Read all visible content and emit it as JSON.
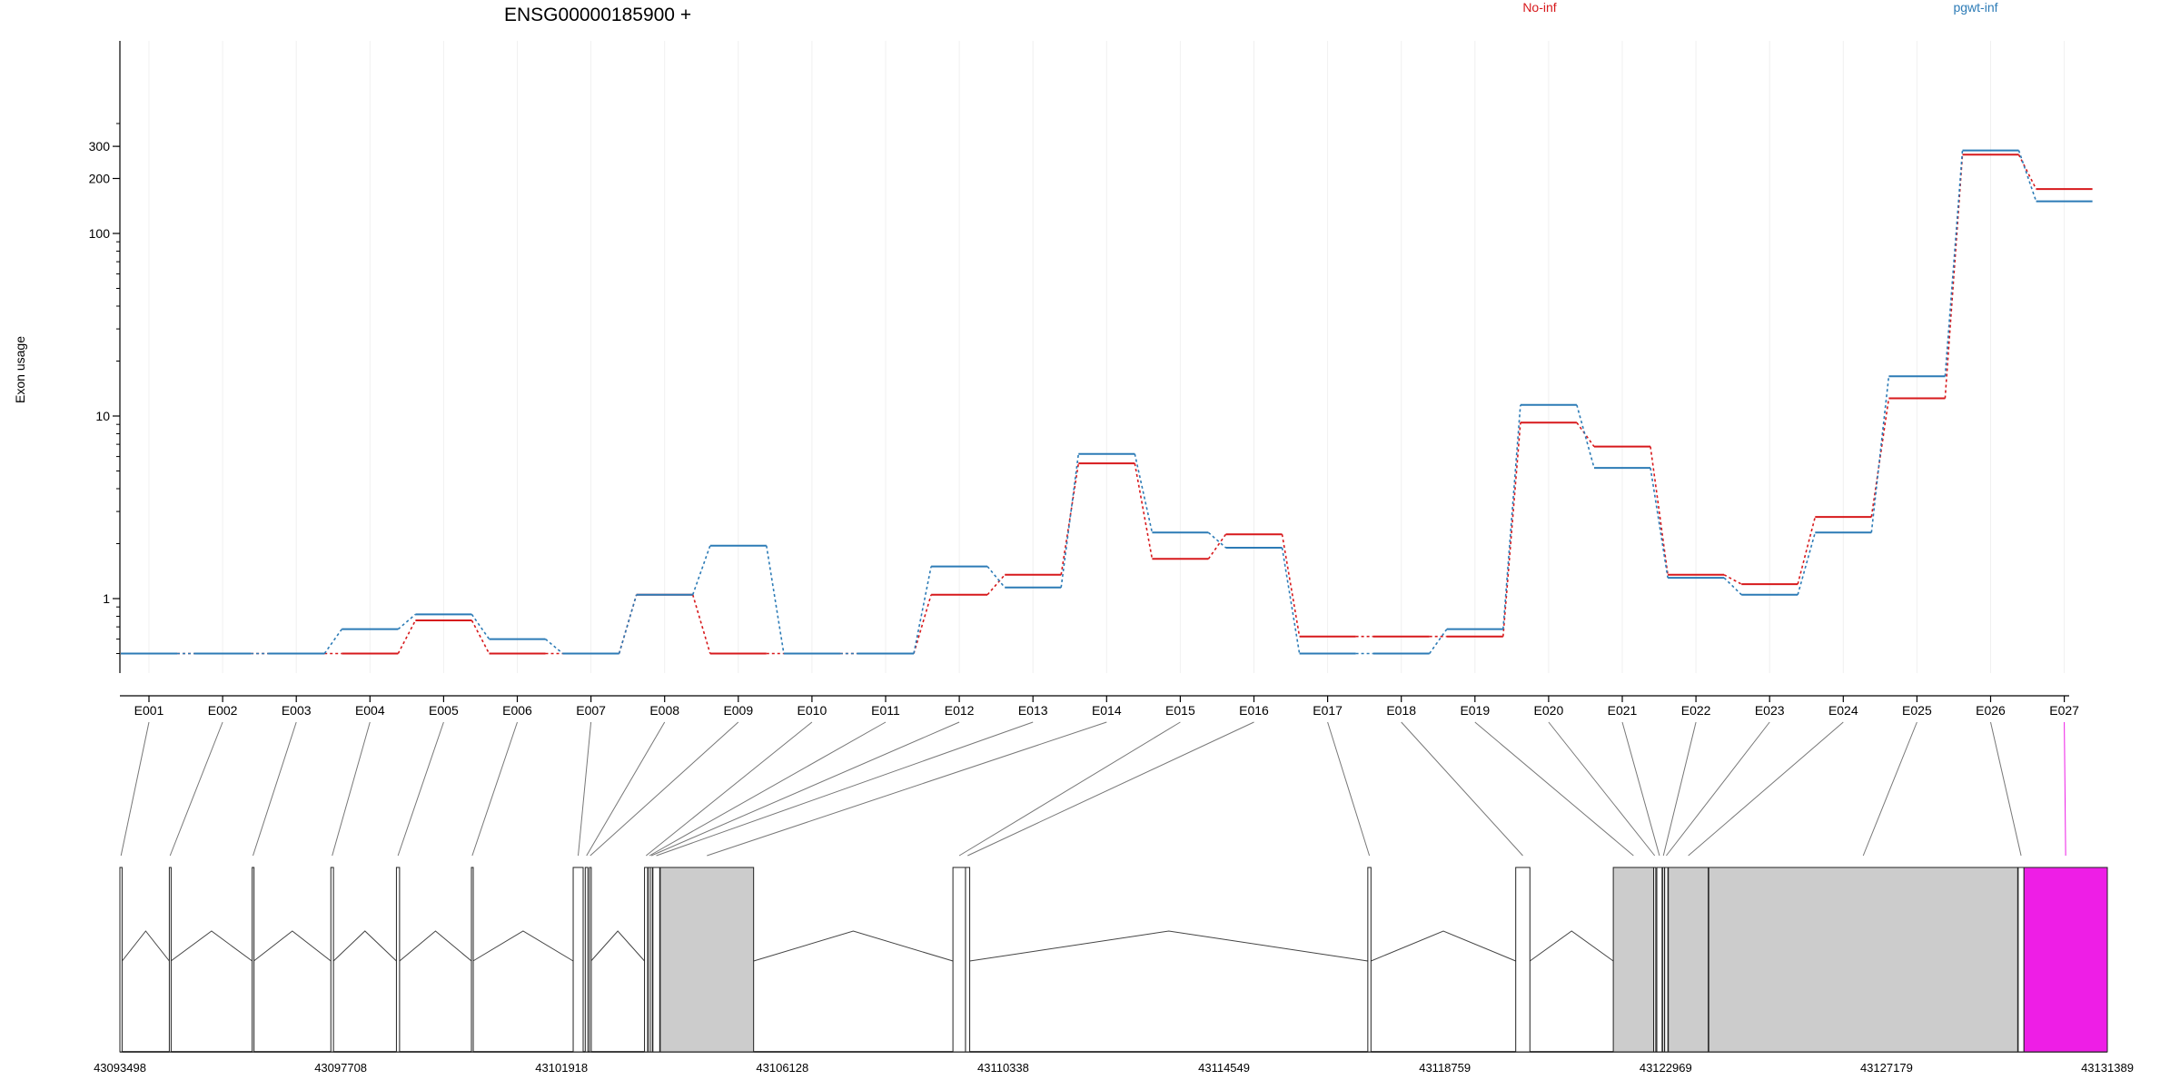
{
  "chart_data": {
    "type": "line",
    "title": "ENSG00000185900 +",
    "ylabel": "Exon usage",
    "xlabel": "",
    "y_scale": "log",
    "ylim": [
      0.5,
      400
    ],
    "y_ticks": [
      1,
      10,
      100,
      200,
      300
    ],
    "grid": "vertical",
    "legend_position": "top",
    "categories": [
      "E001",
      "E002",
      "E003",
      "E004",
      "E005",
      "E006",
      "E007",
      "E008",
      "E009",
      "E010",
      "E011",
      "E012",
      "E013",
      "E014",
      "E015",
      "E016",
      "E017",
      "E018",
      "E019",
      "E020",
      "E021",
      "E022",
      "E023",
      "E024",
      "E025",
      "E026",
      "E027"
    ],
    "series": [
      {
        "name": "No-inf",
        "color": "#d7191c",
        "values": [
          0.5,
          0.5,
          0.5,
          0.5,
          0.76,
          0.5,
          0.5,
          1.05,
          0.5,
          0.5,
          0.5,
          1.05,
          1.35,
          5.5,
          1.65,
          2.25,
          0.62,
          0.62,
          0.62,
          9.2,
          6.8,
          1.35,
          1.2,
          2.8,
          12.5,
          270,
          175
        ]
      },
      {
        "name": "pgwt-inf",
        "color": "#2c7bb6",
        "values": [
          0.5,
          0.5,
          0.5,
          0.68,
          0.82,
          0.6,
          0.5,
          1.05,
          1.95,
          0.5,
          0.5,
          1.5,
          1.15,
          6.2,
          2.3,
          1.9,
          0.5,
          0.5,
          0.68,
          11.5,
          5.2,
          1.3,
          1.05,
          2.3,
          16.5,
          285,
          150
        ]
      }
    ],
    "gene_model": {
      "genomic_range": [
        43093498,
        43131389
      ],
      "coordinate_labels": [
        "43093498",
        "43097708",
        "43101918",
        "43106128",
        "43110338",
        "43114549",
        "43118759",
        "43122969",
        "43127179",
        "43131389"
      ],
      "highlight_color": "#ee1ee6",
      "exon_fill": "#cccccc",
      "exon_groups": [
        {
          "exon": "E001",
          "regions": [
            [
              43093498,
              43093540
            ]
          ]
        },
        {
          "exon": "E002",
          "regions": [
            [
              43094440,
              43094470
            ]
          ]
        },
        {
          "exon": "E003",
          "regions": [
            [
              43096020,
              43096050
            ]
          ]
        },
        {
          "exon": "E004",
          "regions": [
            [
              43097520,
              43097570
            ]
          ]
        },
        {
          "exon": "E005",
          "regions": [
            [
              43098770,
              43098830
            ]
          ]
        },
        {
          "exon": "E006",
          "regions": [
            [
              43100200,
              43100230
            ]
          ]
        },
        {
          "exon": "E007",
          "regions": [
            [
              43102140,
              43102330
            ]
          ]
        },
        {
          "exon": "E008",
          "regions": [
            [
              43102370,
              43102420
            ]
          ]
        },
        {
          "exon": "E009",
          "regions": [
            [
              43102450,
              43102480
            ]
          ]
        },
        {
          "exon": "E010",
          "regions": [
            [
              43103500,
              43103560
            ]
          ]
        },
        {
          "exon": "E011",
          "regions": [
            [
              43103570,
              43103620
            ]
          ]
        },
        {
          "exon": "E012",
          "regions": [
            [
              43103610,
              43103650
            ]
          ]
        },
        {
          "exon": "E013",
          "regions": [
            [
              43103660,
              43103790
            ]
          ]
        },
        {
          "exon": "E014",
          "regions": [
            [
              43103800,
              43105580
            ]
          ]
        },
        {
          "exon": "E015",
          "regions": [
            [
              43109380,
              43109620
            ]
          ]
        },
        {
          "exon": "E016",
          "regions": [
            [
              43109620,
              43109700
            ]
          ]
        },
        {
          "exon": "E017",
          "regions": [
            [
              43117290,
              43117350
            ]
          ]
        },
        {
          "exon": "E018",
          "regions": [
            [
              43120110,
              43120380
            ]
          ]
        },
        {
          "exon": "E019",
          "regions": [
            [
              43121970,
              43122740
            ]
          ]
        },
        {
          "exon": "E020",
          "regions": [
            [
              43122740,
              43122780
            ]
          ]
        },
        {
          "exon": "E021",
          "regions": [
            [
              43122800,
              43122900
            ]
          ]
        },
        {
          "exon": "E022",
          "regions": [
            [
              43122910,
              43122940
            ]
          ]
        },
        {
          "exon": "E023",
          "regions": [
            [
              43122950,
              43123010
            ]
          ]
        },
        {
          "exon": "E024",
          "regions": [
            [
              43123020,
              43123780
            ]
          ]
        },
        {
          "exon": "E025",
          "regions": [
            [
              43123790,
              43129680
            ]
          ]
        },
        {
          "exon": "E026",
          "regions": [
            [
              43129690,
              43129800
            ]
          ]
        },
        {
          "exon": "E027",
          "regions": [
            [
              43129800,
              43131389
            ]
          ]
        }
      ]
    }
  }
}
